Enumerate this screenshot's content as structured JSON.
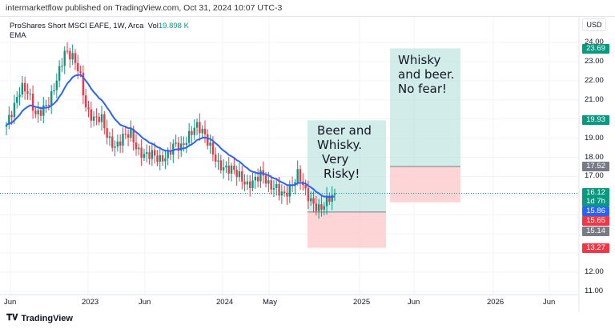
{
  "header": "intermarketflow published on TradingView.com, Oct 31, 2024 10:07 UTC-3",
  "legend": {
    "symbol": "ProShares Short MSCI EAFE, 1W, Arca",
    "vol_label": "Vol",
    "vol_value": "19.898 K",
    "indicator": "EMA"
  },
  "currency": "USD",
  "footer": {
    "brand": "TradingView"
  },
  "colors": {
    "up": "#089981",
    "down": "#f23645",
    "ema": "#2962ff",
    "profit": "#b2dfdb",
    "loss": "#fccbcd"
  },
  "chart_data": {
    "type": "candlestick",
    "ylim": [
      10.6,
      24.7
    ],
    "y_ticks": [
      "24.00",
      "23.00",
      "22.00",
      "21.00",
      "19.00",
      "18.00",
      "17.00",
      "12.00",
      "11.00"
    ],
    "x_ticks": [
      "Jun",
      "2023",
      "Jun",
      "2024",
      "May",
      "2025",
      "Jun",
      "2026",
      "Jun"
    ],
    "closes": [
      19.7,
      20.6,
      21.7,
      21.4,
      20.2,
      20.5,
      21.0,
      22.2,
      23.5,
      23.3,
      22.5,
      20.4,
      20.0,
      20.1,
      18.9,
      18.5,
      19.1,
      19.3,
      18.3,
      18.1,
      18.2,
      17.85,
      18.05,
      18.7,
      18.5,
      19.1,
      19.7,
      19.3,
      18.5,
      17.6,
      17.4,
      17.4,
      17.0,
      16.5,
      16.8,
      17.2,
      16.5,
      16.4,
      16.0,
      16.4,
      17.2,
      16.2,
      15.55,
      15.26,
      15.8,
      16.12
    ],
    "ema_last": "15.86",
    "price_labels": [
      {
        "value": "23.69",
        "v": 23.69,
        "color": "#089981"
      },
      {
        "value": "19.93",
        "v": 19.93,
        "color": "#089981"
      },
      {
        "value": "17.52",
        "v": 17.52,
        "color": "#787b86"
      },
      {
        "value": "16.12",
        "v": 16.12,
        "color": "#089981",
        "sub": "1d 7h"
      },
      {
        "value": "15.86",
        "v": 15.86,
        "color": "#2962ff"
      },
      {
        "value": "15.65",
        "v": 15.65,
        "color": "#f23645"
      },
      {
        "value": "15.14",
        "v": 15.14,
        "color": "#787b86"
      },
      {
        "value": "13.27",
        "v": 13.27,
        "color": "#f23645"
      }
    ],
    "positions": [
      {
        "target": 19.93,
        "entry": 15.14,
        "stop": 13.27,
        "text": [
          "Beer and",
          "Whisky.",
          "Very",
          "Risky!"
        ]
      },
      {
        "target": 23.69,
        "entry": 17.52,
        "stop": 15.65,
        "text": [
          "Whisky",
          "and beer.",
          "No fear!"
        ]
      }
    ]
  }
}
